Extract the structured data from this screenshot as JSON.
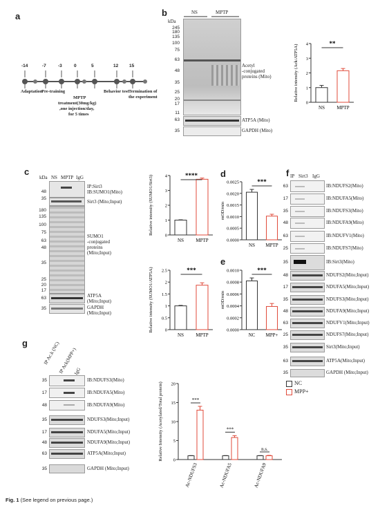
{
  "panels": {
    "a": "a",
    "b": "b",
    "c": "c",
    "d": "d",
    "e": "e",
    "f": "f",
    "g": "g"
  },
  "timeline": {
    "days": [
      "-14",
      "-7",
      "-3",
      "0",
      "5",
      "12",
      "15"
    ],
    "labels": {
      "adaptation": "Adaptation",
      "pretraining": "Pre-training",
      "mptp": "MPTP",
      "treatment": [
        "treatment(30mg/kg)",
        ",one injection/day,",
        "for 5 times"
      ],
      "behavior": "Behavior test",
      "termination": [
        "Termination of",
        "the experiment"
      ]
    }
  },
  "b": {
    "lanes": [
      "NS",
      "MPTP"
    ],
    "kda": "kDa",
    "markers": [
      "245",
      "180",
      "135",
      "100",
      "75",
      "63",
      "48",
      "35",
      "25",
      "20",
      "17",
      "11",
      "63",
      "35"
    ],
    "blot_labels": {
      "acetyl": [
        "Acetyl",
        "-conjugated",
        "proteins (Mito)"
      ],
      "atp5a": "ATP5A (Mito)",
      "gapdh": "GAPDH (Mito)"
    }
  },
  "c": {
    "kda": "kDa",
    "lanes": [
      "NS",
      "MPTP",
      "IgG"
    ],
    "labels": {
      "ip": [
        "IP:Sirt3",
        "IB:SUMO1(Mito)"
      ],
      "sirt3": "Sirt3 (Mito;Input)",
      "sumo": [
        "SUMO1",
        "-conjugated",
        "proteins",
        "(Mito;Input)"
      ],
      "atp5a": [
        "ATP5A",
        "(Mito;Input)"
      ],
      "gapdh": [
        "GAPDH",
        "(Mito;Input)"
      ]
    },
    "markers_top": [
      "48",
      "35"
    ],
    "markers_mid": [
      "180",
      "135",
      "100",
      "75",
      "63",
      "48",
      "35",
      "25",
      "20",
      "17"
    ],
    "markers_bot": [
      "63",
      "35"
    ]
  },
  "f": {
    "lanes": [
      "IP",
      "Sirt3",
      "IgG"
    ],
    "rows": [
      {
        "kda": "63",
        "label": "IB:NDUFS2(Mito)"
      },
      {
        "kda": "17",
        "label": "IB:NDUFA5(Mito)"
      },
      {
        "kda": "35",
        "label": "IB:NDUFS3(Mito)"
      },
      {
        "kda": "48",
        "label": "IB:NDUFA9(Mito)"
      },
      {
        "kda": "63",
        "label": "IB:NDUFV1(Mito)"
      },
      {
        "kda": "25",
        "label": "IB:NDUFS7(Mito)"
      },
      {
        "kda": "35",
        "label": "IB:Sirt3(Mito)"
      },
      {
        "kda": "48",
        "label": "NDUFS2(Mito;Input)"
      },
      {
        "kda": "17",
        "label": "NDUFA5(Mito;Input)"
      },
      {
        "kda": "35",
        "label": "NDUFS3(Mito;Input)"
      },
      {
        "kda": "48",
        "label": "NDUFA9(Mito;Input)"
      },
      {
        "kda": "63",
        "label": "NDUFV1(Mito;Input)"
      },
      {
        "kda": "25",
        "label": "NDUFS7(Mito;Input)"
      },
      {
        "kda": "35",
        "label": "Sirt3(Mito;Input)"
      },
      {
        "kda": "63",
        "label": "ATP5A(Mito;Input)"
      },
      {
        "kda": "35",
        "label": "GAPDH (Mito;Input)"
      }
    ]
  },
  "g": {
    "lanes": [
      "IP Ac.k (NC)",
      "IP Ack(MPP+)",
      "IgG"
    ],
    "rows": [
      {
        "kda": "35",
        "label": "IB:NDUFS3(Mito)"
      },
      {
        "kda": "17",
        "label": "IB:NDUFA5(Mito)"
      },
      {
        "kda": "48",
        "label": "IB:NDUFA9(Mito)"
      },
      {
        "kda": "35",
        "label": "NDUFS3(Mito;Input)"
      },
      {
        "kda": "17",
        "label": "NDUFA5(Mito;Input)"
      },
      {
        "kda": "48",
        "label": "NDUFA9(Mito;Input)"
      },
      {
        "kda": "63",
        "label": "ATP5A(Mito;Input)"
      },
      {
        "kda": "35",
        "label": "GAPDH (Mito;Input)"
      }
    ]
  },
  "colors": {
    "control": "#333333",
    "treatment": "#e04a3a"
  },
  "chart_data": [
    {
      "id": "b",
      "type": "bar",
      "categories": [
        "NS",
        "MPTP"
      ],
      "values": [
        1.0,
        2.15
      ],
      "errors": [
        0.15,
        0.15
      ],
      "ylim": [
        0,
        4
      ],
      "yticks": [
        0,
        1,
        2,
        3,
        4
      ],
      "ylabel": "Relative intensity (Ack/ATP5A)",
      "sig": "**"
    },
    {
      "id": "c1",
      "type": "bar",
      "categories": [
        "NS",
        "MPTP"
      ],
      "values": [
        1.0,
        3.75
      ],
      "errors": [
        0.02,
        0.08
      ],
      "ylim": [
        0,
        4
      ],
      "yticks": [
        0,
        1,
        2,
        3,
        4
      ],
      "ylabel": "Relative intensity (SUMO1/Sirt3)",
      "sig": "****"
    },
    {
      "id": "c2",
      "type": "bar",
      "categories": [
        "NS",
        "MPTP"
      ],
      "values": [
        1.0,
        1.87
      ],
      "errors": [
        0.02,
        0.1
      ],
      "ylim": [
        0,
        2.5
      ],
      "yticks": [
        0.0,
        0.5,
        1.0,
        1.5,
        2.0,
        2.5
      ],
      "ylabel": "Relative intensity (SUMO1/ATP5A)",
      "sig": "***"
    },
    {
      "id": "d",
      "type": "bar",
      "categories": [
        "NS",
        "MPTP"
      ],
      "values": [
        0.00205,
        0.00102
      ],
      "errors": [
        0.00012,
        8e-05
      ],
      "ylim": [
        0,
        0.0025
      ],
      "yticks": [
        "0.0000",
        "0.0005",
        "0.0010",
        "0.0015",
        "0.0020",
        "0.0025"
      ],
      "ylabel": "mOD/min",
      "sig": "***"
    },
    {
      "id": "e",
      "type": "bar",
      "categories": [
        "NC",
        "MPP+"
      ],
      "values": [
        0.00082,
        0.00039
      ],
      "errors": [
        5e-05,
        5e-05
      ],
      "ylim": [
        0,
        0.001
      ],
      "yticks": [
        "0.0000",
        "0.0002",
        "0.0004",
        "0.0006",
        "0.0008",
        "0.0010"
      ],
      "ylabel": "mOD/min",
      "sig": "***"
    },
    {
      "id": "g",
      "type": "bar",
      "categories": [
        "Ac-NDUFS3",
        "Ac-NDUFA5",
        "Ac-NDUFA9"
      ],
      "series": [
        {
          "name": "NC",
          "values": [
            1.0,
            1.0,
            1.0
          ],
          "errors": [
            0.05,
            0.05,
            0.05
          ]
        },
        {
          "name": "MPP+",
          "values": [
            13.0,
            5.8,
            1.0
          ],
          "errors": [
            1.0,
            0.5,
            0.1
          ]
        }
      ],
      "ylim": [
        0,
        20
      ],
      "yticks": [
        0,
        5,
        10,
        15,
        20
      ],
      "ylabel": "Relative Intensity (Acetylated/Total protein)",
      "sig": [
        "***",
        "***",
        "n.s."
      ]
    }
  ],
  "caption": {
    "fig": "Fig. 1",
    "text": " (See legend on previous page.)"
  }
}
